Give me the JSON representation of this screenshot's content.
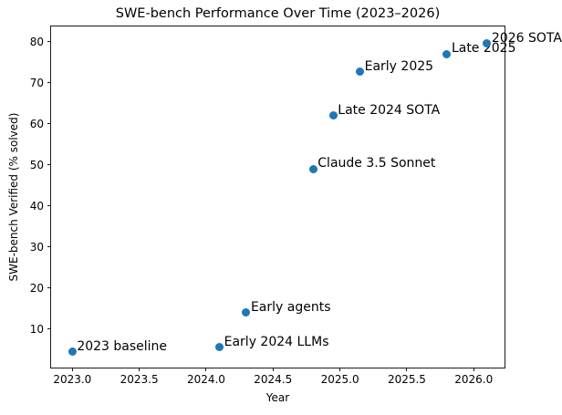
{
  "chart_data": {
    "type": "scatter",
    "title": "SWE-bench Performance Over Time (2023–2026)",
    "xlabel": "Year",
    "ylabel": "SWE-bench Verified (% solved)",
    "grid": false,
    "legend": "none",
    "marker_color": "#1f77b4",
    "xlim": [
      2022.841,
      2026.23
    ],
    "ylim": [
      0.6,
      83.7
    ],
    "xticks": [
      {
        "value": 2023.0,
        "label": "2023.0"
      },
      {
        "value": 2023.5,
        "label": "2023.5"
      },
      {
        "value": 2024.0,
        "label": "2024.0"
      },
      {
        "value": 2024.5,
        "label": "2024.5"
      },
      {
        "value": 2025.0,
        "label": "2025.0"
      },
      {
        "value": 2025.5,
        "label": "2025.5"
      },
      {
        "value": 2026.0,
        "label": "2026.0"
      }
    ],
    "yticks": [
      {
        "value": 10,
        "label": "10"
      },
      {
        "value": 20,
        "label": "20"
      },
      {
        "value": 30,
        "label": "30"
      },
      {
        "value": 40,
        "label": "40"
      },
      {
        "value": 50,
        "label": "50"
      },
      {
        "value": 60,
        "label": "60"
      },
      {
        "value": 70,
        "label": "70"
      },
      {
        "value": 80,
        "label": "80"
      }
    ],
    "points": [
      {
        "x": 2023.0,
        "y": 4.4,
        "label": "2023 baseline"
      },
      {
        "x": 2024.1,
        "y": 5.5,
        "label": "Early 2024 LLMs"
      },
      {
        "x": 2024.3,
        "y": 14.0,
        "label": "Early agents"
      },
      {
        "x": 2024.8,
        "y": 49.0,
        "label": "Claude 3.5 Sonnet"
      },
      {
        "x": 2024.95,
        "y": 62.0,
        "label": "Late 2024 SOTA"
      },
      {
        "x": 2025.15,
        "y": 72.7,
        "label": "Early 2025"
      },
      {
        "x": 2025.8,
        "y": 77.0,
        "label": "Late 2025"
      },
      {
        "x": 2026.1,
        "y": 79.5,
        "label": "2026 SOTA"
      }
    ]
  }
}
